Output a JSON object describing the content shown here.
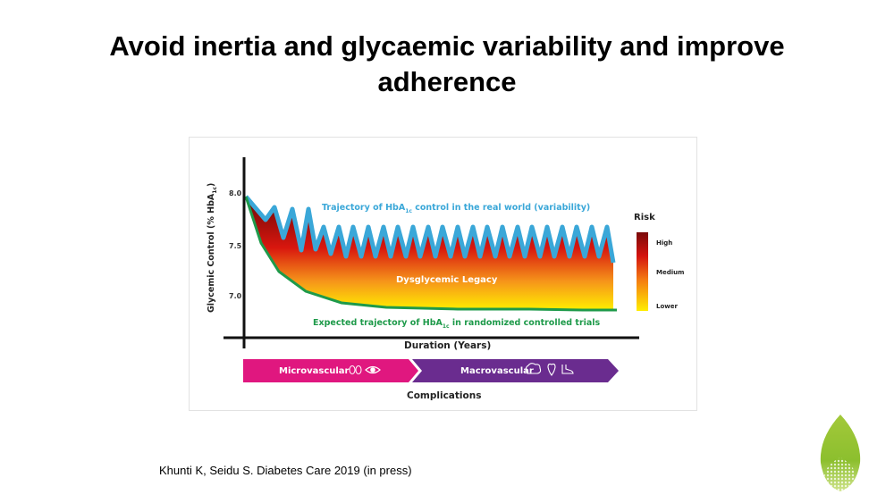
{
  "slide": {
    "title_line1": "Avoid inertia and glycaemic variability and improve",
    "title_line2": "adherence",
    "citation": "Khunti K, Seidu S. Diabetes Care 2019 (in press)"
  },
  "figure": {
    "y_axis_label": "Glycemic Control (% HbA",
    "y_axis_label_sub": "1c",
    "y_axis_label_close": ")",
    "y_ticks": [
      "8.0",
      "7.5",
      "7.0"
    ],
    "x_axis_label": "Duration (Years)",
    "real_world_label": "Trajectory of HbA",
    "real_world_label_sub": "1c",
    "real_world_label_rest": " control in the real world (variability)",
    "legacy_label": "Dysglycemic Legacy",
    "rct_label": "Expected trajectory of HbA",
    "rct_label_sub": "1c",
    "rct_label_rest": " in randomized controlled trials",
    "risk_title": "Risk",
    "risk_levels": [
      "High",
      "Medium",
      "Lower"
    ],
    "micro_label": "Microvascular",
    "macro_label": "Macrovascular",
    "complications_label": "Complications",
    "colors": {
      "real_world": "#3aa7d8",
      "rct": "#1e9a4a",
      "micro": "#e0177f",
      "macro": "#6a2c8f",
      "high_risk": "#8b1010",
      "low_risk": "#ffee00"
    }
  }
}
